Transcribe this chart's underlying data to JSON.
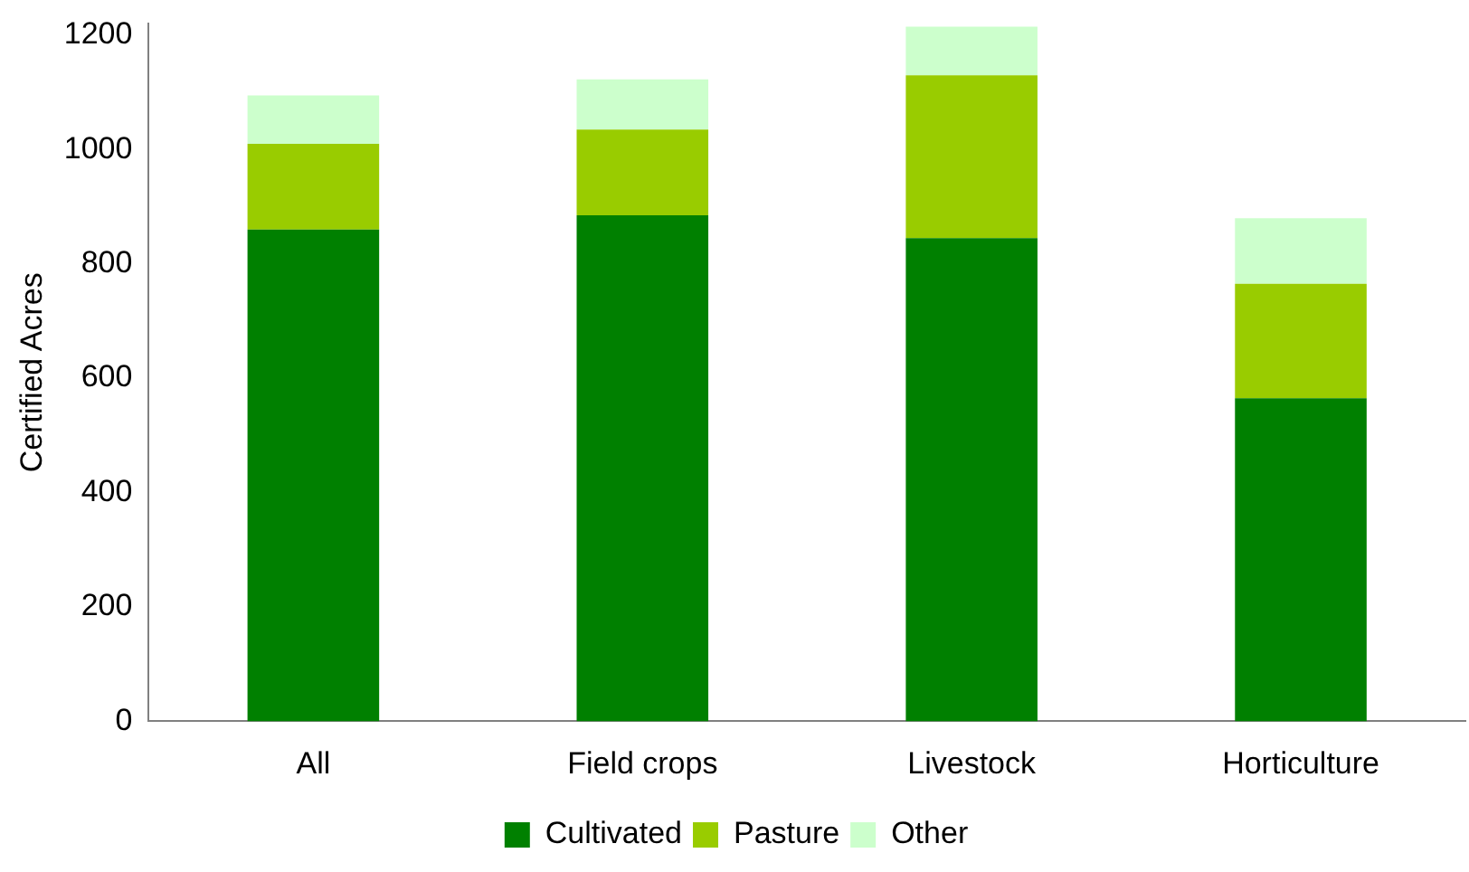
{
  "chart_data": {
    "type": "bar",
    "ylabel": "Certified Acres",
    "categories": [
      "All",
      "Field crops",
      "Livestock",
      "Horticulture"
    ],
    "stacked": true,
    "series": [
      {
        "name": "Cultivated",
        "color": "#008000",
        "values": [
          860,
          885,
          845,
          565
        ]
      },
      {
        "name": "Pasture",
        "color": "#99cc00",
        "values": [
          150,
          150,
          285,
          200
        ]
      },
      {
        "name": "Other",
        "color": "#ccffcc",
        "values": [
          85,
          88,
          85,
          115
        ]
      }
    ],
    "ylim": [
      0,
      1220
    ],
    "yticks": [
      0,
      200,
      400,
      600,
      800,
      1000,
      1200
    ],
    "grid": false,
    "legend": "bottom"
  }
}
